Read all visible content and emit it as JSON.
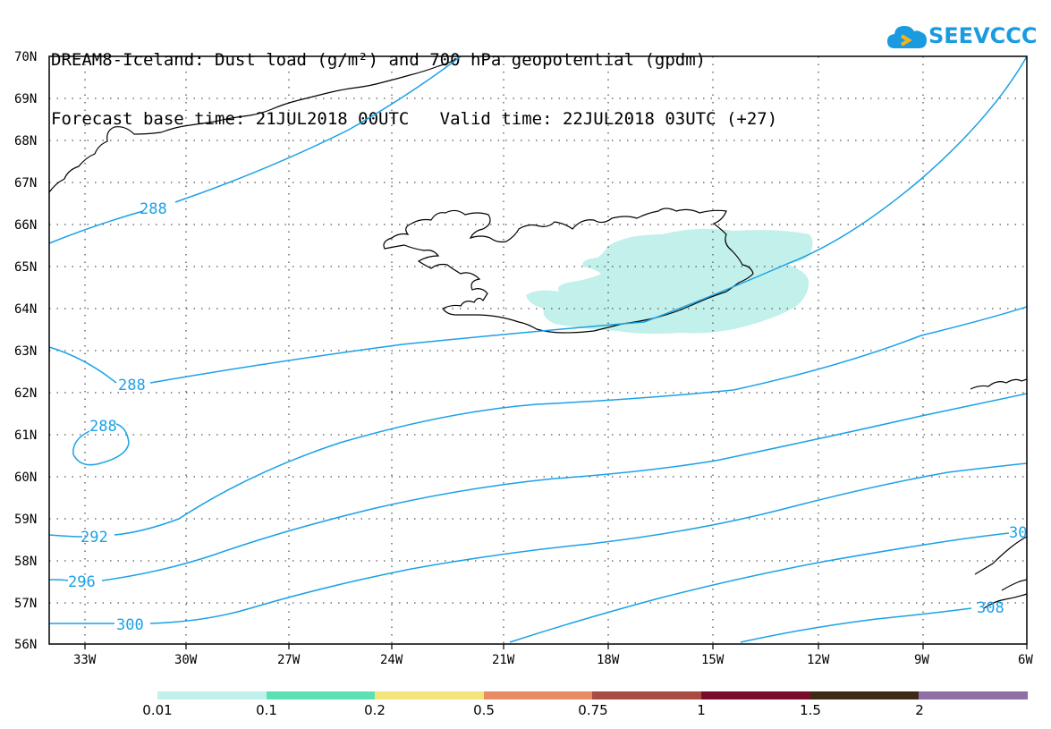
{
  "title": {
    "line1": "DREAM8-Iceland: Dust load (g/m²) and 700 hPa geopotential (gpdm)",
    "line2": "Forecast base time: 21JUL2018 00UTC   Valid time: 22JUL2018 03UTC (+27)"
  },
  "logo": {
    "text": "SEEVCCC",
    "icon": "cloud-icon",
    "color": "#1a9be0"
  },
  "map": {
    "lat_labels": [
      "70N",
      "69N",
      "68N",
      "67N",
      "66N",
      "65N",
      "64N",
      "63N",
      "62N",
      "61N",
      "60N",
      "59N",
      "58N",
      "57N",
      "56N"
    ],
    "lon_labels": [
      "33W",
      "30W",
      "27W",
      "24W",
      "21W",
      "18W",
      "15W",
      "12W",
      "9W",
      "6W"
    ],
    "contour_labels": [
      "288",
      "288",
      "288",
      "292",
      "296",
      "300",
      "308",
      "30"
    ],
    "contour_color": "#1ba1e6",
    "dust_color": "#c2f0ea"
  },
  "colorbar": {
    "colors": [
      "#c2f0ea",
      "#5de0b4",
      "#f4e47c",
      "#e88c62",
      "#a84c44",
      "#7a0d2c",
      "#3c2a16",
      "#8f6fa4"
    ],
    "labels": [
      "0.01",
      "0.1",
      "0.2",
      "0.5",
      "0.75",
      "1",
      "1.5",
      "2"
    ]
  }
}
